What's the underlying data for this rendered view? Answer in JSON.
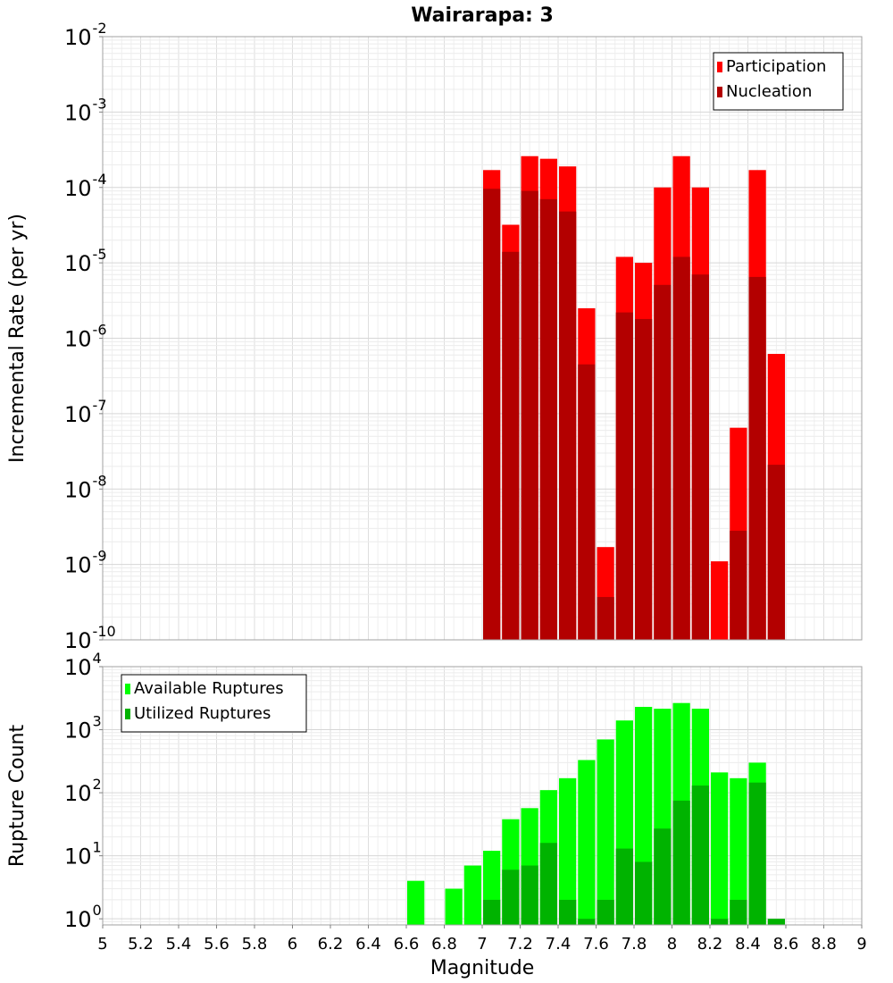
{
  "chart_data": [
    {
      "type": "bar",
      "title": "Wairarapa: 3",
      "xlabel": "",
      "ylabel": "Incremental Rate (per yr)",
      "yscale": "log",
      "xlim": [
        5,
        9
      ],
      "ylim": [
        1e-10,
        0.01
      ],
      "y_tick_exponents": [
        -10,
        -9,
        -8,
        -7,
        -6,
        -5,
        -4,
        -3,
        -2
      ],
      "legend_position": "top-right",
      "grid": true,
      "bar_width": 0.1,
      "x": [
        7.05,
        7.15,
        7.25,
        7.35,
        7.45,
        7.55,
        7.65,
        7.75,
        7.85,
        7.95,
        8.05,
        8.15,
        8.25,
        8.35,
        8.45,
        8.55
      ],
      "series": [
        {
          "name": "Participation",
          "color": "#ff0000",
          "values": [
            0.00017,
            3.2e-05,
            0.00026,
            0.00024,
            0.00019,
            2.5e-06,
            1.7e-09,
            1.2e-05,
            1e-05,
            0.0001,
            0.00026,
            0.0001,
            1.1e-09,
            6.5e-08,
            0.00017,
            6.2e-07
          ]
        },
        {
          "name": "Nucleation",
          "color": "#b30000",
          "values": [
            9.6e-05,
            1.4e-05,
            9e-05,
            7e-05,
            4.8e-05,
            4.5e-07,
            3.7e-10,
            2.2e-06,
            1.8e-06,
            5.1e-06,
            1.2e-05,
            7e-06,
            null,
            2.8e-09,
            6.5e-06,
            2.1e-08
          ]
        }
      ]
    },
    {
      "type": "bar",
      "title": "",
      "xlabel": "Magnitude",
      "ylabel": "Rupture Count",
      "yscale": "log",
      "xlim": [
        5,
        9
      ],
      "ylim": [
        0.8,
        10000.0
      ],
      "y_tick_exponents": [
        0,
        1,
        2,
        3,
        4
      ],
      "x_ticks": [
        "5",
        "5.2",
        "5.4",
        "5.6",
        "5.8",
        "6",
        "6.2",
        "6.4",
        "6.6",
        "6.8",
        "7",
        "7.2",
        "7.4",
        "7.6",
        "7.8",
        "8",
        "8.2",
        "8.4",
        "8.6",
        "8.8",
        "9"
      ],
      "legend_position": "top-left",
      "grid": true,
      "bar_width": 0.1,
      "x": [
        6.65,
        6.85,
        6.95,
        7.05,
        7.15,
        7.25,
        7.35,
        7.45,
        7.55,
        7.65,
        7.75,
        7.85,
        7.95,
        8.05,
        8.15,
        8.25,
        8.35,
        8.45,
        8.55
      ],
      "series": [
        {
          "name": "Available Ruptures",
          "color": "#00ff00",
          "values": [
            4,
            3,
            7,
            12,
            38,
            57,
            110,
            170,
            330,
            700,
            1400,
            2300,
            2150,
            2650,
            2150,
            210,
            170,
            300,
            null
          ]
        },
        {
          "name": "Utilized Ruptures",
          "color": "#00b300",
          "values": [
            null,
            null,
            null,
            2,
            6,
            7,
            16,
            2,
            1,
            2,
            13,
            8,
            27,
            75,
            130,
            1,
            2,
            145,
            1
          ]
        }
      ]
    }
  ]
}
